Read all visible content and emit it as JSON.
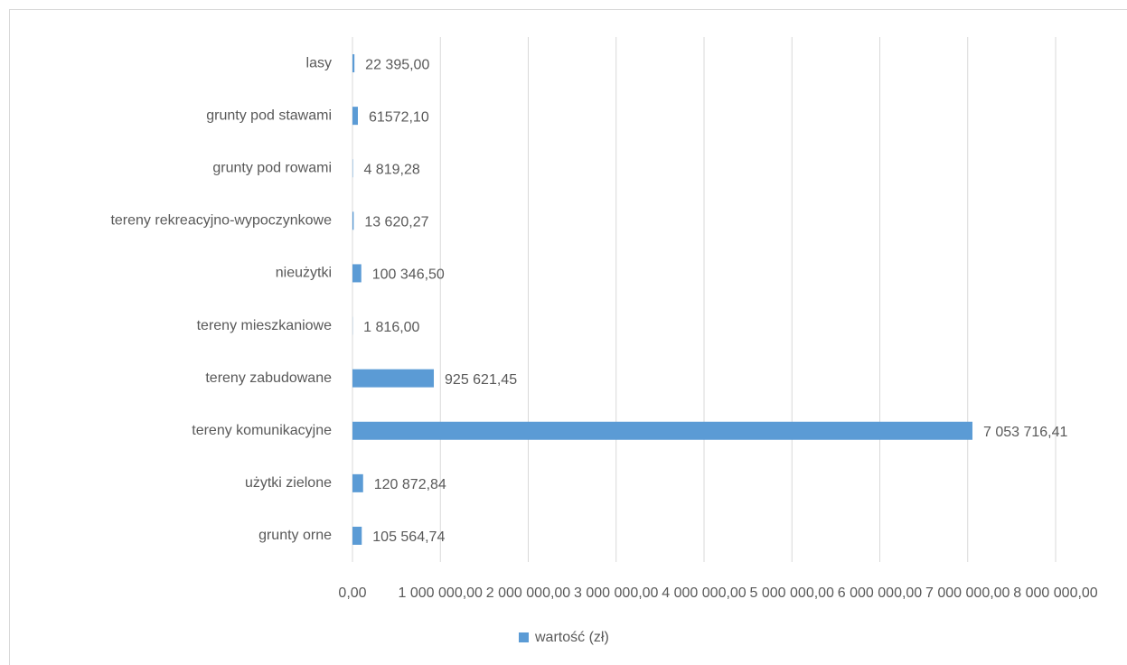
{
  "chart_data": {
    "type": "hbar",
    "categories": [
      "lasy",
      "grunty pod stawami",
      "grunty pod rowami",
      "tereny rekreacyjno-wypoczynkowe",
      "nieużytki",
      "tereny mieszkaniowe",
      "tereny zabudowane",
      "tereny komunikacyjne",
      "użytki zielone",
      "grunty orne"
    ],
    "series": [
      {
        "name": "wartość (zł)",
        "color": "#5b9bd5",
        "values": [
          22395,
          61572.1,
          4819.28,
          13620.27,
          100346.5,
          1816,
          925621.45,
          7053716.41,
          120872.84,
          105564.74
        ],
        "value_labels": [
          "22 395,00",
          "61572,10",
          "4 819,28",
          "13 620,27",
          "100 346,50",
          "1 816,00",
          "925 621,45",
          "7 053 716,41",
          "120 872,84",
          "105 564,74"
        ]
      }
    ],
    "xlim": [
      0,
      8000000
    ],
    "xticks": [
      {
        "value": 0,
        "label": "0,00"
      },
      {
        "value": 1000000,
        "label": "1 000 000,00"
      },
      {
        "value": 2000000,
        "label": "2 000 000,00"
      },
      {
        "value": 3000000,
        "label": "3 000 000,00"
      },
      {
        "value": 4000000,
        "label": "4 000 000,00"
      },
      {
        "value": 5000000,
        "label": "5 000 000,00"
      },
      {
        "value": 6000000,
        "label": "6 000 000,00"
      },
      {
        "value": 7000000,
        "label": "7 000 000,00"
      },
      {
        "value": 8000000,
        "label": "8 000 000,00"
      }
    ],
    "grid": true,
    "legend": "bottom"
  }
}
